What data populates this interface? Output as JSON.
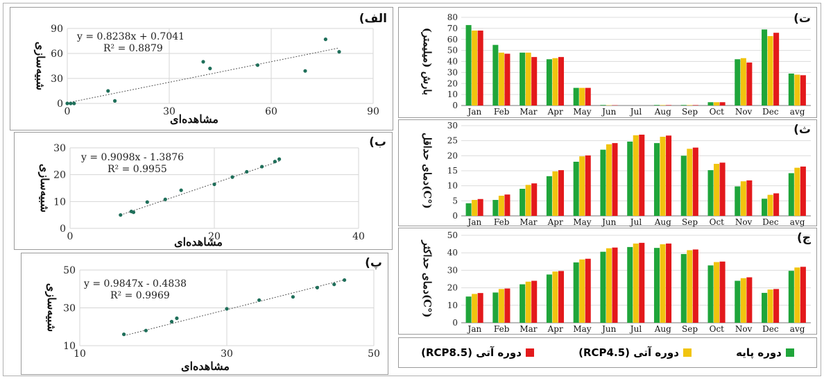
{
  "panel_labels": [
    "الف)",
    "ب)",
    "پ)",
    "ت)",
    "ث)",
    "ج)"
  ],
  "colors": {
    "base": "#1fa53a",
    "rcp45": "#f1c40f",
    "rcp85": "#e3191b",
    "scatter": "#1f6f5a"
  },
  "legend": [
    {
      "label": "دوره پایه",
      "color_key": "base"
    },
    {
      "label": "دوره آتی (RCP4.5)",
      "color_key": "rcp45"
    },
    {
      "label": "دوره آتی (RCP8.5)",
      "color_key": "rcp85"
    }
  ],
  "chart_data": [
    {
      "id": "alef",
      "type": "scatter",
      "equation": "y = 0.8238x + 0.7041",
      "r2": "R² = 0.8879",
      "xlabel": "مشاهده‌ای",
      "ylabel": "شبیه‌سازی",
      "xlim": [
        0,
        90
      ],
      "ylim": [
        0,
        90
      ],
      "xticks": [
        0,
        30,
        60,
        90
      ],
      "yticks": [
        0,
        30,
        60,
        90
      ],
      "grid": true,
      "x": [
        0,
        1,
        2,
        12,
        14,
        40,
        42,
        56,
        70,
        76,
        80
      ],
      "y": [
        0,
        0,
        0,
        15,
        3,
        50,
        42,
        46,
        39,
        77,
        62
      ]
    },
    {
      "id": "be",
      "type": "scatter",
      "equation": "y = 0.9098x - 1.3876",
      "r2": "R² = 0.9955",
      "xlabel": "مشاهده‌ای",
      "ylabel": "شبیه‌سازی",
      "xlim": [
        0,
        40
      ],
      "ylim": [
        0,
        30
      ],
      "xticks": [
        0,
        20,
        40
      ],
      "yticks": [
        0,
        10,
        20,
        30
      ],
      "grid": true,
      "x": [
        7,
        8.5,
        8.8,
        10.7,
        13.2,
        15.4,
        20,
        22.5,
        24.5,
        26.6,
        28.4,
        29
      ],
      "y": [
        5,
        6.3,
        6.0,
        9.8,
        10.8,
        14.2,
        16.4,
        19.1,
        21.1,
        23.0,
        24.9,
        25.8
      ]
    },
    {
      "id": "pe",
      "type": "scatter",
      "equation": "y = 0.9847x - 0.4838",
      "r2": "R² = 0.9969",
      "xlabel": "مشاهده‌ای",
      "ylabel": "شبیه‌سازی",
      "xlim": [
        10,
        50
      ],
      "ylim": [
        10,
        50
      ],
      "xticks": [
        10,
        30,
        50
      ],
      "yticks": [
        10,
        30,
        50
      ],
      "grid": true,
      "x": [
        16,
        19,
        22.5,
        23.2,
        30,
        34.4,
        39,
        42.3,
        44.6,
        46
      ],
      "y": [
        16,
        18,
        22.7,
        24.5,
        29.5,
        34.1,
        35.8,
        40.7,
        42.4,
        44.7
      ]
    },
    {
      "id": "te",
      "type": "bar",
      "ylabel": "بارش (میلیمتر)",
      "categories": [
        "Jan",
        "Feb",
        "Mar",
        "Apr",
        "May",
        "Jun",
        "Jul",
        "Aug",
        "Sep",
        "Oct",
        "Nov",
        "Dec",
        "avg"
      ],
      "ylim": [
        0,
        80
      ],
      "yticks": [
        0,
        10,
        20,
        30,
        40,
        50,
        60,
        70,
        80
      ],
      "series": [
        {
          "color_key": "base",
          "values": [
            73,
            55,
            48,
            42,
            16,
            0.5,
            0,
            0.5,
            0.5,
            3,
            42,
            69,
            29
          ]
        },
        {
          "color_key": "rcp45",
          "values": [
            68,
            48,
            48,
            43,
            16,
            0.3,
            0,
            0.4,
            0.4,
            3,
            43,
            63,
            28
          ]
        },
        {
          "color_key": "rcp85",
          "values": [
            68,
            47,
            44,
            44,
            16,
            0.3,
            0,
            0.4,
            0.4,
            3,
            39,
            66,
            27.5
          ]
        }
      ]
    },
    {
      "id": "the",
      "type": "bar",
      "ylabel": "دمای حداقل(C°)",
      "categories": [
        "Jan",
        "Feb",
        "Mar",
        "Apr",
        "May",
        "Jun",
        "Jul",
        "Aug",
        "Sep",
        "Oct",
        "Nov",
        "Dec",
        "avg"
      ],
      "ylim": [
        0,
        30
      ],
      "yticks": [
        0,
        5,
        10,
        15,
        20,
        25,
        30
      ],
      "series": [
        {
          "color_key": "base",
          "values": [
            4.2,
            5.3,
            9.0,
            13.2,
            18.0,
            22.0,
            24.7,
            24.2,
            20.0,
            15.2,
            9.8,
            5.7,
            14.2
          ]
        },
        {
          "color_key": "rcp45",
          "values": [
            5.3,
            6.7,
            10.3,
            14.8,
            19.8,
            23.8,
            26.8,
            26.3,
            22.3,
            17.3,
            11.5,
            7.0,
            16.0
          ]
        },
        {
          "color_key": "rcp85",
          "values": [
            5.6,
            7.1,
            10.8,
            15.2,
            20.1,
            24.2,
            27.0,
            26.7,
            22.7,
            17.7,
            11.8,
            7.5,
            16.4
          ]
        }
      ]
    },
    {
      "id": "jim",
      "type": "bar",
      "ylabel": "دمای حداکثر(C°)",
      "categories": [
        "Jan",
        "Feb",
        "Mar",
        "Apr",
        "May",
        "Jun",
        "Jul",
        "Aug",
        "Sep",
        "Oct",
        "Nov",
        "Dec",
        "avg"
      ],
      "ylim": [
        0,
        50
      ],
      "yticks": [
        0,
        10,
        20,
        30,
        40,
        50
      ],
      "series": [
        {
          "color_key": "base",
          "values": [
            15.0,
            17.3,
            22.0,
            27.6,
            34.5,
            40.6,
            43.3,
            42.8,
            39.3,
            32.8,
            24.0,
            17.1,
            29.7
          ]
        },
        {
          "color_key": "rcp45",
          "values": [
            16.5,
            19.3,
            23.5,
            29.3,
            36.2,
            42.6,
            45.3,
            44.9,
            41.5,
            34.7,
            25.5,
            19.0,
            31.6
          ]
        },
        {
          "color_key": "rcp85",
          "values": [
            17.0,
            19.6,
            24.0,
            29.6,
            36.6,
            43.0,
            45.7,
            45.3,
            41.9,
            35.0,
            26.0,
            19.3,
            32.0
          ]
        }
      ]
    }
  ]
}
